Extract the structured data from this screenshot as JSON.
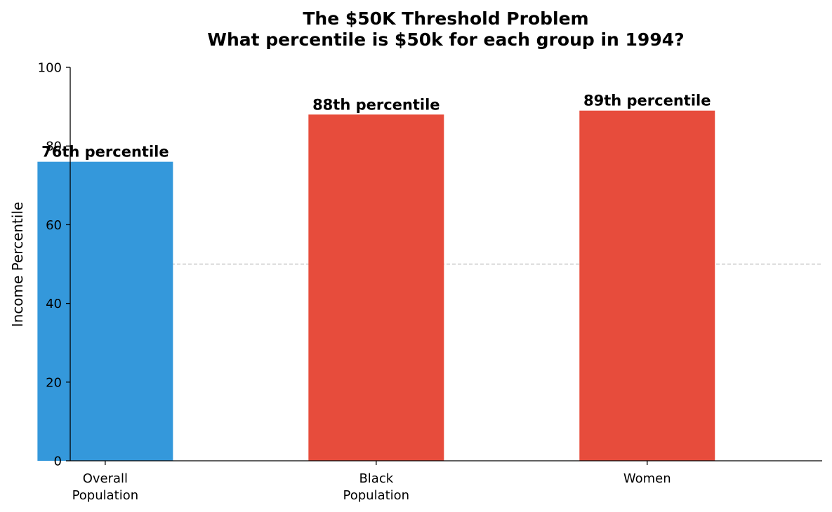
{
  "chart_data": {
    "type": "bar",
    "title_lines": [
      "The $50K Threshold Problem",
      "What percentile is $50k for each group in 1994?"
    ],
    "xlabel": "",
    "ylabel": "Income Percentile",
    "ylim": [
      0,
      100
    ],
    "yticks": [
      0,
      20,
      40,
      60,
      80,
      100
    ],
    "categories": [
      [
        "Overall",
        "Population"
      ],
      [
        "Black",
        "Population"
      ],
      [
        "Women"
      ]
    ],
    "values": [
      76,
      88,
      89
    ],
    "data_labels": [
      "76th percentile",
      "88th percentile",
      "89th percentile"
    ],
    "bar_colors": [
      "#3498db",
      "#e74c3c",
      "#e74c3c"
    ],
    "reference_line": {
      "y": 50,
      "style": "dashed",
      "color": "#bbbbbb"
    },
    "grid": false,
    "legend": "none"
  }
}
